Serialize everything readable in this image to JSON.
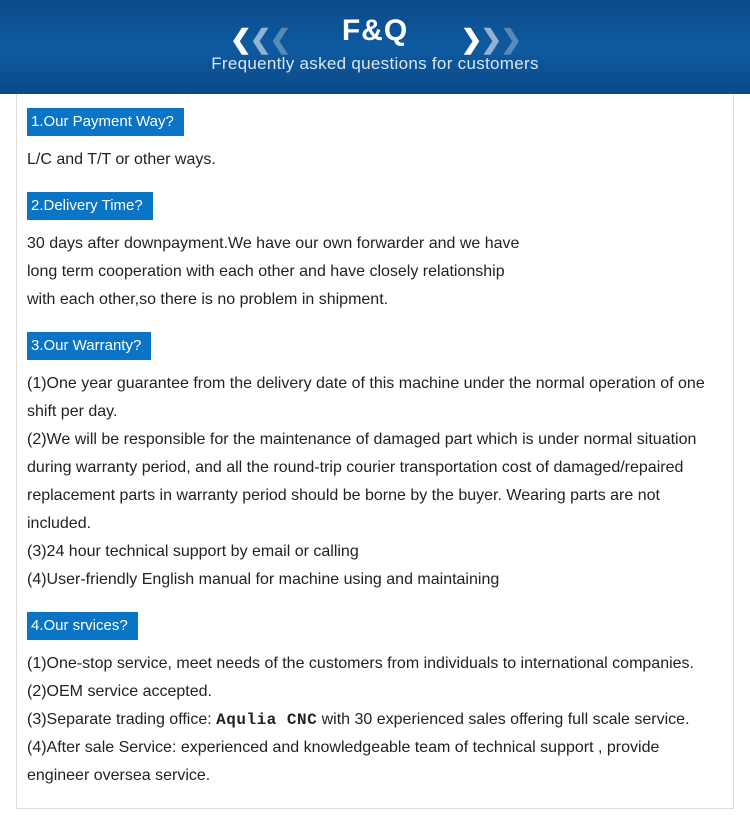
{
  "banner": {
    "title": "F&Q",
    "subtitle": "Frequently asked questions for customers",
    "bg_gradient_top": "#0c4a8a",
    "bg_gradient_mid": "#0e5aa0",
    "bg_gradient_bottom": "#0c4a8a"
  },
  "heading_bg_color": "#0a74c6",
  "sections": [
    {
      "heading": "1.Our Payment Way?",
      "body": [
        "L/C and T/T or other ways."
      ]
    },
    {
      "heading": "2.Delivery Time?",
      "body": [
        "30 days after downpayment.We have our own forwarder and we have",
        "long term cooperation with each other and have closely relationship",
        "with each other,so there is no problem in shipment."
      ]
    },
    {
      "heading": "3.Our Warranty?",
      "body": [
        "(1)One year guarantee from the delivery date of this machine under the normal operation of one shift per day.",
        "(2)We will be responsible for the maintenance of damaged part which is under normal situation during warranty period, and all the round-trip courier transportation cost of damaged/repaired replacement parts in warranty period should be borne by the buyer. Wearing parts are not included.",
        "(3)24 hour technical support by email or calling",
        "(4)User-friendly English manual for machine using and maintaining"
      ]
    },
    {
      "heading": "4.Our srvices?",
      "body": [
        "(1)One-stop service, meet needs of the customers from individuals to international companies.",
        "(2)OEM service accepted.",
        {
          "prefix": "(3)Separate trading office: ",
          "brand": "Aqulia CNC",
          "suffix": " with 30 experienced sales offering full scale service."
        },
        "(4)After sale Service: experienced and knowledgeable team of technical support , provide engineer oversea service."
      ]
    }
  ]
}
